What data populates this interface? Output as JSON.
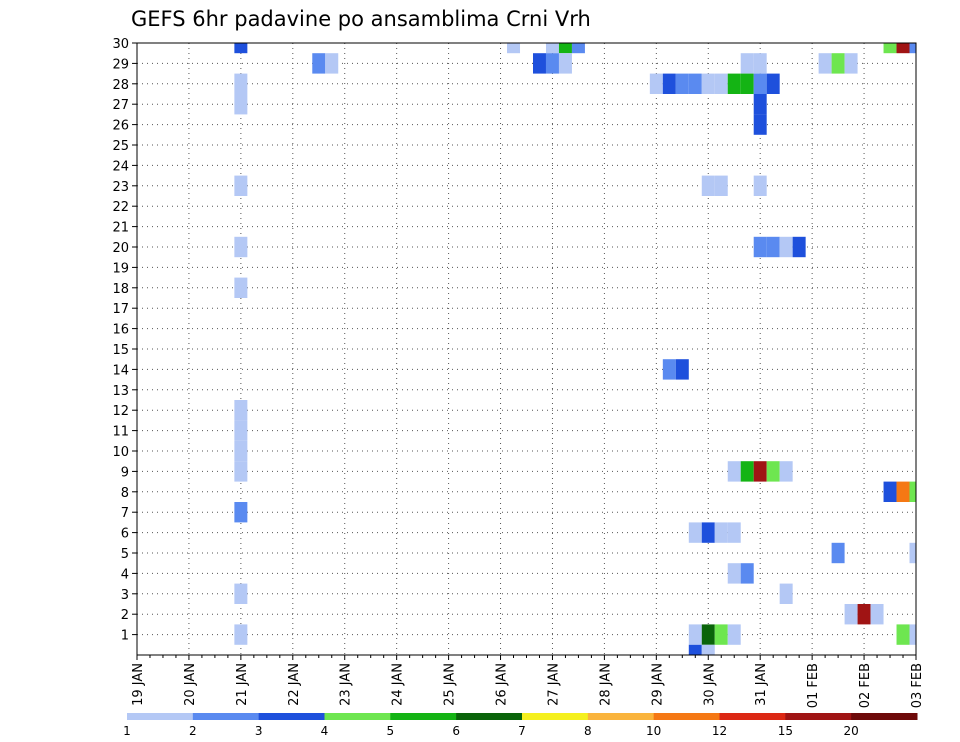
{
  "chart_data": {
    "type": "heatmap",
    "title": "GEFS 6hr padavine po ansamblima Crni Vrh",
    "xlabel": "",
    "ylabel": "",
    "x_tick_labels": [
      "19 JAN",
      "20 JAN",
      "21 JAN",
      "22 JAN",
      "23 JAN",
      "24 JAN",
      "25 JAN",
      "26 JAN",
      "27 JAN",
      "28 JAN",
      "29 JAN",
      "30 JAN",
      "31 JAN",
      "01 FEB",
      "02 FEB",
      "03 FEB"
    ],
    "x_range_days": [
      0,
      15
    ],
    "y_tick_labels": [
      "1",
      "2",
      "3",
      "4",
      "5",
      "6",
      "7",
      "8",
      "9",
      "10",
      "11",
      "12",
      "13",
      "14",
      "15",
      "16",
      "17",
      "18",
      "19",
      "20",
      "21",
      "22",
      "23",
      "24",
      "25",
      "26",
      "27",
      "28",
      "29",
      "30"
    ],
    "y_range": [
      0,
      30
    ],
    "grid": true,
    "levels": [
      1,
      2,
      3,
      4,
      5,
      6,
      7,
      8,
      10,
      12,
      15,
      20
    ],
    "colorbar_colors": [
      "#b4c8f5",
      "#5a8af0",
      "#1e50dc",
      "#6ee650",
      "#14b414",
      "#0a640a",
      "#f5f01e",
      "#fab43c",
      "#f57814",
      "#dc2814",
      "#a01414",
      "#6e0a0a"
    ],
    "cells": [
      {
        "m": 30,
        "d": 2.0,
        "v": 3
      },
      {
        "m": 30,
        "d": 7.25,
        "v": 1
      },
      {
        "m": 30,
        "d": 8.0,
        "v": 1
      },
      {
        "m": 30,
        "d": 8.25,
        "v": 5
      },
      {
        "m": 30,
        "d": 8.5,
        "v": 2
      },
      {
        "m": 30,
        "d": 14.5,
        "v": 4
      },
      {
        "m": 30,
        "d": 14.75,
        "v": 15
      },
      {
        "m": 30,
        "d": 15.0,
        "v": 2
      },
      {
        "m": 29,
        "d": 3.5,
        "v": 2
      },
      {
        "m": 29,
        "d": 3.75,
        "v": 1
      },
      {
        "m": 29,
        "d": 7.75,
        "v": 3
      },
      {
        "m": 29,
        "d": 8.0,
        "v": 2
      },
      {
        "m": 29,
        "d": 8.25,
        "v": 1
      },
      {
        "m": 29,
        "d": 11.75,
        "v": 1
      },
      {
        "m": 29,
        "d": 12.0,
        "v": 1
      },
      {
        "m": 29,
        "d": 13.25,
        "v": 1
      },
      {
        "m": 29,
        "d": 13.5,
        "v": 4
      },
      {
        "m": 29,
        "d": 13.75,
        "v": 1
      },
      {
        "m": 28,
        "d": 2.0,
        "v": 1
      },
      {
        "m": 28,
        "d": 10.0,
        "v": 1
      },
      {
        "m": 28,
        "d": 10.25,
        "v": 3
      },
      {
        "m": 28,
        "d": 10.5,
        "v": 2
      },
      {
        "m": 28,
        "d": 10.75,
        "v": 2
      },
      {
        "m": 28,
        "d": 11.0,
        "v": 1
      },
      {
        "m": 28,
        "d": 11.25,
        "v": 1
      },
      {
        "m": 28,
        "d": 11.5,
        "v": 5
      },
      {
        "m": 28,
        "d": 11.75,
        "v": 5
      },
      {
        "m": 28,
        "d": 12.0,
        "v": 2
      },
      {
        "m": 28,
        "d": 12.25,
        "v": 3
      },
      {
        "m": 27,
        "d": 2.0,
        "v": 1
      },
      {
        "m": 27,
        "d": 12.0,
        "v": 3
      },
      {
        "m": 26,
        "d": 12.0,
        "v": 3
      },
      {
        "m": 23,
        "d": 2.0,
        "v": 1
      },
      {
        "m": 23,
        "d": 11.0,
        "v": 1
      },
      {
        "m": 23,
        "d": 11.25,
        "v": 1
      },
      {
        "m": 23,
        "d": 12.0,
        "v": 1
      },
      {
        "m": 20,
        "d": 2.0,
        "v": 1
      },
      {
        "m": 20,
        "d": 12.0,
        "v": 2
      },
      {
        "m": 20,
        "d": 12.25,
        "v": 2
      },
      {
        "m": 20,
        "d": 12.5,
        "v": 1
      },
      {
        "m": 20,
        "d": 12.75,
        "v": 3
      },
      {
        "m": 18,
        "d": 2.0,
        "v": 1
      },
      {
        "m": 14,
        "d": 10.25,
        "v": 2
      },
      {
        "m": 14,
        "d": 10.5,
        "v": 3
      },
      {
        "m": 12,
        "d": 2.0,
        "v": 1
      },
      {
        "m": 11,
        "d": 2.0,
        "v": 1
      },
      {
        "m": 10,
        "d": 2.0,
        "v": 1
      },
      {
        "m": 9,
        "d": 2.0,
        "v": 1
      },
      {
        "m": 9,
        "d": 11.5,
        "v": 1
      },
      {
        "m": 9,
        "d": 11.75,
        "v": 5
      },
      {
        "m": 9,
        "d": 12.0,
        "v": 15
      },
      {
        "m": 9,
        "d": 12.25,
        "v": 4
      },
      {
        "m": 9,
        "d": 12.5,
        "v": 1
      },
      {
        "m": 8,
        "d": 14.5,
        "v": 3
      },
      {
        "m": 8,
        "d": 14.75,
        "v": 10
      },
      {
        "m": 8,
        "d": 15.0,
        "v": 4
      },
      {
        "m": 7,
        "d": 2.0,
        "v": 2
      },
      {
        "m": 6,
        "d": 10.75,
        "v": 1
      },
      {
        "m": 6,
        "d": 11.0,
        "v": 3
      },
      {
        "m": 6,
        "d": 11.25,
        "v": 1
      },
      {
        "m": 6,
        "d": 11.5,
        "v": 1
      },
      {
        "m": 5,
        "d": 13.5,
        "v": 2
      },
      {
        "m": 5,
        "d": 15.0,
        "v": 1
      },
      {
        "m": 4,
        "d": 11.5,
        "v": 1
      },
      {
        "m": 4,
        "d": 11.75,
        "v": 2
      },
      {
        "m": 3,
        "d": 2.0,
        "v": 1
      },
      {
        "m": 3,
        "d": 12.5,
        "v": 1
      },
      {
        "m": 2,
        "d": 13.75,
        "v": 1
      },
      {
        "m": 2,
        "d": 14.0,
        "v": 15
      },
      {
        "m": 2,
        "d": 14.25,
        "v": 1
      },
      {
        "m": 1,
        "d": 2.0,
        "v": 1
      },
      {
        "m": 1,
        "d": 10.75,
        "v": 1
      },
      {
        "m": 1,
        "d": 11.0,
        "v": 6
      },
      {
        "m": 1,
        "d": 11.25,
        "v": 4
      },
      {
        "m": 1,
        "d": 11.5,
        "v": 1
      },
      {
        "m": 1,
        "d": 14.75,
        "v": 4
      },
      {
        "m": 1,
        "d": 15.0,
        "v": 1
      },
      {
        "m": 0,
        "d": 10.75,
        "v": 3
      },
      {
        "m": 0,
        "d": 11.0,
        "v": 1
      }
    ]
  }
}
